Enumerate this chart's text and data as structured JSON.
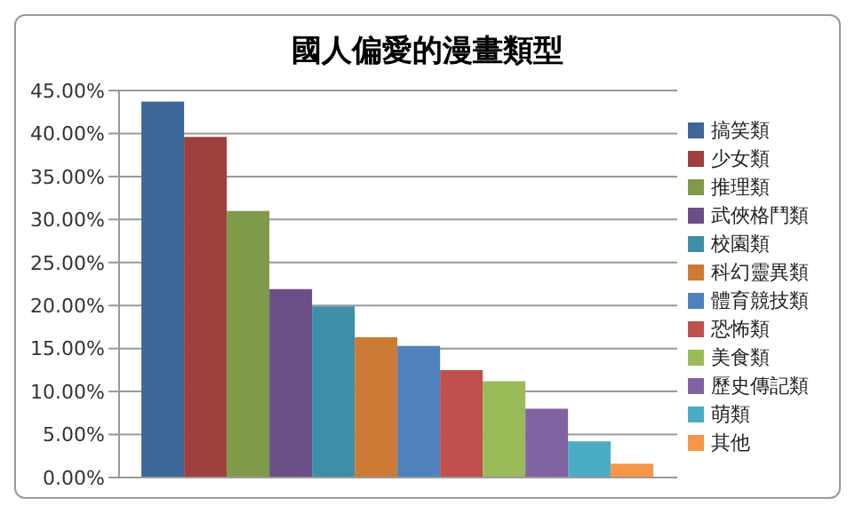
{
  "chart_data": {
    "type": "bar",
    "title": "國人偏愛的漫畫類型",
    "categories": [
      null
    ],
    "series": [
      {
        "name": "搞笑類",
        "color": "#3d6699",
        "values": [
          43.7
        ]
      },
      {
        "name": "少女類",
        "color": "#9e403d",
        "values": [
          39.6
        ]
      },
      {
        "name": "推理類",
        "color": "#7f9a48",
        "values": [
          31.0
        ]
      },
      {
        "name": "武俠格鬥類",
        "color": "#6a5086",
        "values": [
          21.9
        ]
      },
      {
        "name": "校園類",
        "color": "#3c8fa6",
        "values": [
          19.9
        ]
      },
      {
        "name": "科幻靈異類",
        "color": "#cc7a34",
        "values": [
          16.3
        ]
      },
      {
        "name": "體育競技類",
        "color": "#4f81bd",
        "values": [
          15.3
        ]
      },
      {
        "name": "恐怖類",
        "color": "#c0504d",
        "values": [
          12.5
        ]
      },
      {
        "name": "美食類",
        "color": "#9bbb59",
        "values": [
          11.2
        ]
      },
      {
        "name": "歷史傳記類",
        "color": "#8064a2",
        "values": [
          8.0
        ]
      },
      {
        "name": "萌類",
        "color": "#4bacc6",
        "values": [
          4.2
        ]
      },
      {
        "name": "其他",
        "color": "#f79646",
        "values": [
          1.6
        ]
      }
    ],
    "ylim": [
      0,
      45
    ],
    "yticks": [
      {
        "value": 0,
        "label": "0.00%"
      },
      {
        "value": 5,
        "label": "5.00%"
      },
      {
        "value": 10,
        "label": "10.00%"
      },
      {
        "value": 15,
        "label": "15.00%"
      },
      {
        "value": 20,
        "label": "20.00%"
      },
      {
        "value": 25,
        "label": "25.00%"
      },
      {
        "value": 30,
        "label": "30.00%"
      },
      {
        "value": 35,
        "label": "35.00%"
      },
      {
        "value": 40,
        "label": "40.00%"
      },
      {
        "value": 45,
        "label": "45.00%"
      }
    ],
    "grid": "y",
    "legend": "right",
    "tick_labels": "y"
  }
}
